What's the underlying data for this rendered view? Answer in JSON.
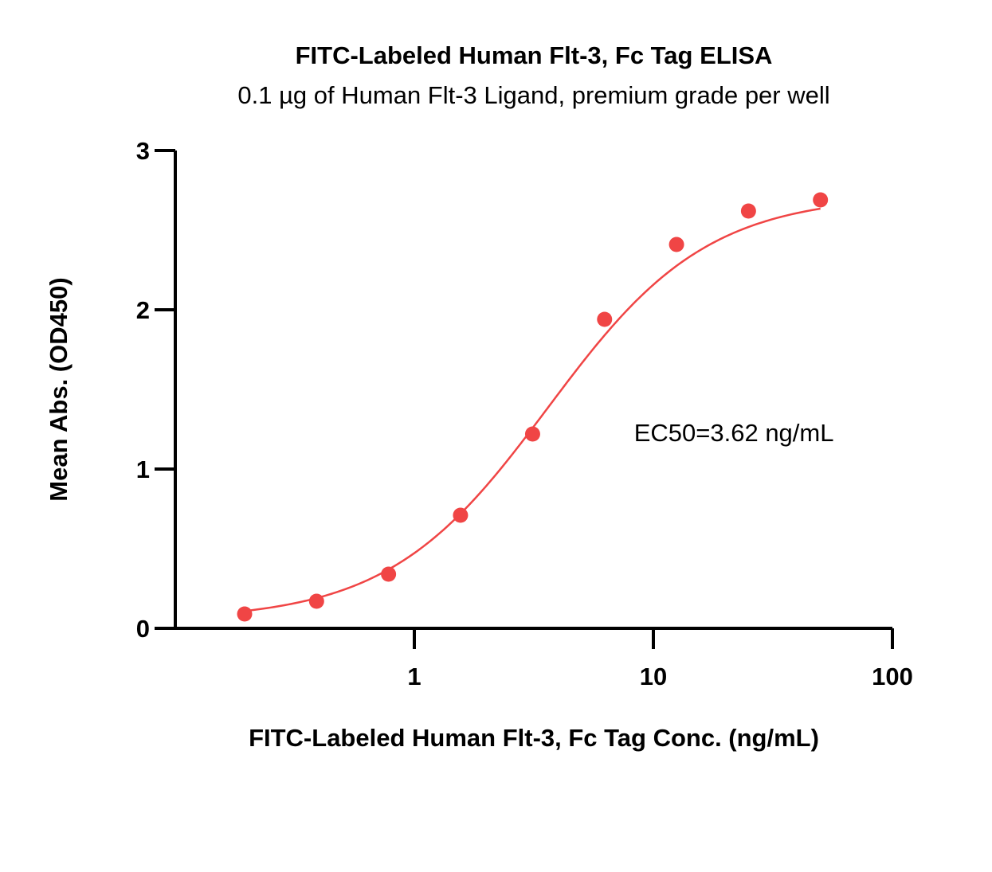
{
  "chart_data": {
    "type": "scatter",
    "title": "FITC-Labeled Human Flt-3, Fc Tag ELISA",
    "subtitle": "0.1 µg of Human Flt-3 Ligand, premium grade per well",
    "xlabel": "FITC-Labeled Human Flt-3, Fc Tag Conc. (ng/mL)",
    "ylabel": "Mean Abs. (OD450)",
    "x_scale": "log",
    "xlim": [
      0.1,
      100
    ],
    "ylim": [
      0,
      3
    ],
    "x_ticks": [
      {
        "value": 1,
        "label": "1"
      },
      {
        "value": 10,
        "label": "10"
      },
      {
        "value": 100,
        "label": "100"
      }
    ],
    "y_ticks": [
      {
        "value": 0,
        "label": "0"
      },
      {
        "value": 1,
        "label": "1"
      },
      {
        "value": 2,
        "label": "2"
      },
      {
        "value": 3,
        "label": "3"
      }
    ],
    "series": [
      {
        "color": "#f04545",
        "x": [
          0.195,
          0.39,
          0.78,
          1.56,
          3.125,
          6.25,
          12.5,
          25,
          50
        ],
        "y": [
          0.09,
          0.17,
          0.34,
          0.71,
          1.22,
          1.94,
          2.41,
          2.62,
          2.69
        ],
        "fit": {
          "model": "4PL",
          "bottom": 0.05,
          "top": 2.72,
          "ec50": 3.62,
          "hill": 1.3
        }
      }
    ],
    "annotations": [
      {
        "text": "EC50=3.62 ng/mL",
        "x": 8.3,
        "y": 1.23
      }
    ],
    "grid": false,
    "legend": "none"
  }
}
